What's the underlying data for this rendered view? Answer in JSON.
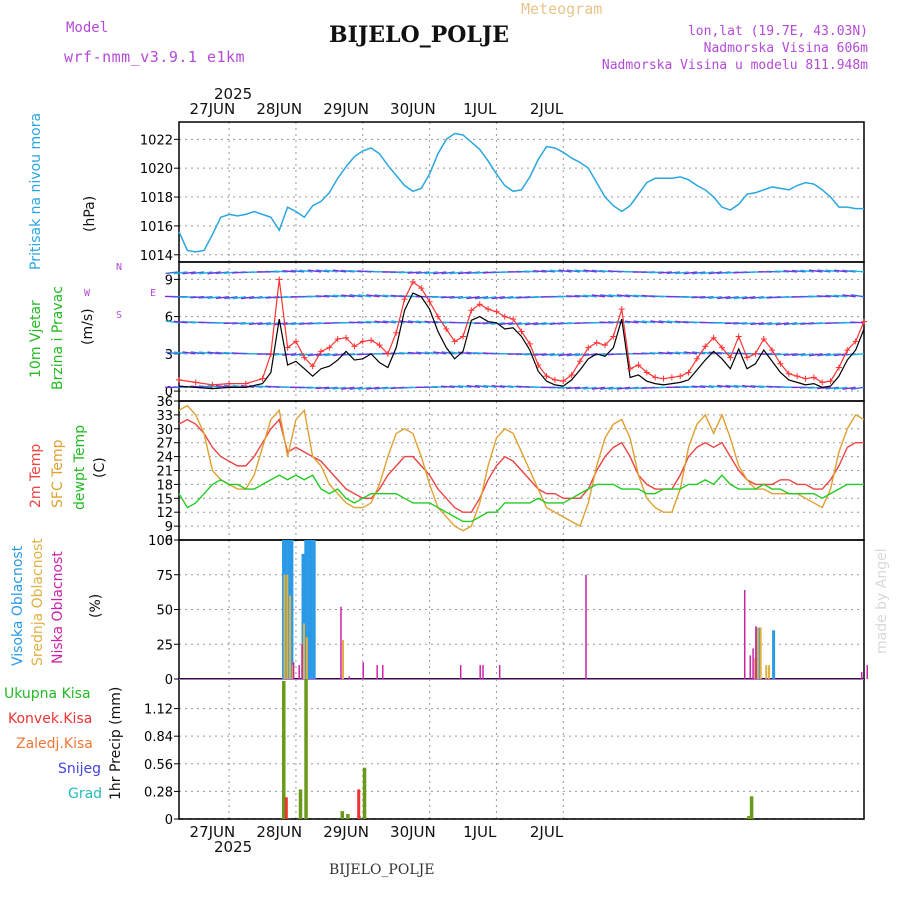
{
  "header": {
    "model_label": "Model",
    "model_name": "wrf-nmm_v3.9.1  e1km",
    "title": "BIJELO_POLJE",
    "product": "Meteogram",
    "coords": "lon,lat (19.7E, 43.03N)",
    "altitude": "Nadmorska Visina 606m",
    "model_altitude": "Nadmorska Visina u modelu 811.948m"
  },
  "footer": {
    "station": "BIJELO_POLJE",
    "credit": "made by Angel"
  },
  "time_axis": {
    "year": "2025",
    "days": [
      "27JUN",
      "28JUN",
      "29JUN",
      "30JUN",
      "1JUL",
      "2JUL"
    ]
  },
  "panels": {
    "pressure": {
      "label": "Pritisak na nivou mora",
      "unit": "(hPa)"
    },
    "wind": {
      "label1": "10m Vjetar",
      "label2": "Brzina i Pravac",
      "unit": "(m/s)",
      "compass_n": "N",
      "compass_s": "S",
      "compass_w": "W",
      "compass_e": "E"
    },
    "temp": {
      "label_2m": "2m Temp",
      "label_sfc": "SFC Temp",
      "label_dew": "dewpt Temp",
      "unit": "(C)"
    },
    "cloud": {
      "label_high": "Visoka Oblacnost",
      "label_mid": "Srednja Oblacnost",
      "label_low": "Niska Oblacnost",
      "unit": "(%)"
    },
    "precip": {
      "legend": [
        "Ukupna Kisa",
        "Konvek.Kisa",
        "Zaledj.Kisa",
        "Snijeg",
        "Grad"
      ],
      "ylabel": "1hr Precip (mm)"
    }
  },
  "colors": {
    "pressure": "#2aa6e0",
    "wind_speed": "#000000",
    "gust": "#ff3333",
    "temp2m": "#ee4444",
    "sfc": "#e0a030",
    "dew": "#22cc22",
    "high_cloud": "#2a9ae8",
    "mid_cloud": "#e0b040",
    "low_cloud": "#cc22aa",
    "total_precip": "#6a9a1a",
    "conv_precip": "#ee3333"
  },
  "chart_data": [
    {
      "type": "line",
      "title": "",
      "ylabel": "(hPa)",
      "ylim": [
        1013.5,
        1023.2
      ],
      "yticks": [
        1014,
        1016,
        1018,
        1020,
        1022
      ],
      "x": [
        0,
        3,
        6,
        9,
        12,
        15,
        18,
        21,
        24,
        27,
        30,
        33,
        36,
        39,
        42,
        45,
        48,
        51,
        54,
        57,
        60,
        63,
        66,
        69,
        72,
        75,
        78,
        81,
        84,
        87,
        90,
        93,
        96,
        99,
        102,
        105,
        108,
        111,
        114,
        117,
        120,
        123,
        126,
        129,
        132,
        135,
        138,
        141,
        144,
        147,
        150,
        153,
        156,
        159,
        162,
        165,
        168,
        171,
        174,
        177,
        180,
        183,
        186,
        189,
        192,
        195,
        198,
        201,
        204,
        207,
        210,
        213,
        216,
        219,
        222,
        225,
        228,
        231,
        234,
        237,
        240,
        243,
        246
      ],
      "series": [
        {
          "values": [
            1015.6,
            1014.3,
            1014.2,
            1014.3,
            1015.4,
            1016.6,
            1016.8,
            1016.7,
            1016.8,
            1017.0,
            1016.8,
            1016.6,
            1015.7,
            1017.3,
            1017.0,
            1016.6,
            1017.4,
            1017.7,
            1018.3,
            1019.3,
            1020.1,
            1020.8,
            1021.2,
            1021.4,
            1021.0,
            1020.2,
            1019.5,
            1018.8,
            1018.4,
            1018.6,
            1019.6,
            1021.0,
            1022.0,
            1022.4,
            1022.3,
            1021.8,
            1021.3,
            1020.5,
            1019.6,
            1018.8,
            1018.4,
            1018.5,
            1019.4,
            1020.6,
            1021.5,
            1021.4,
            1021.1,
            1020.7,
            1020.4,
            1020.0,
            1019.0,
            1018.0,
            1017.4,
            1017.0,
            1017.4,
            1018.2,
            1019.0,
            1019.3,
            1019.3,
            1019.3,
            1019.4,
            1019.2,
            1018.8,
            1018.5,
            1018.0,
            1017.3,
            1017.1,
            1017.5,
            1018.2,
            1018.3,
            1018.5,
            1018.7,
            1018.6,
            1018.5,
            1018.8,
            1019.0,
            1018.9,
            1018.5,
            1018.0,
            1017.3,
            1017.3,
            1017.2,
            1017.2
          ]
        }
      ]
    },
    {
      "type": "line",
      "title": "",
      "ylabel": "(m/s)",
      "ylim": [
        -0.8,
        10.4
      ],
      "yticks": [
        0,
        3,
        6,
        9
      ],
      "x": [
        0,
        6,
        12,
        18,
        24,
        30,
        33,
        36,
        39,
        42,
        45,
        48,
        51,
        54,
        57,
        60,
        63,
        66,
        69,
        72,
        75,
        78,
        81,
        84,
        87,
        90,
        93,
        96,
        99,
        102,
        105,
        108,
        111,
        114,
        117,
        120,
        123,
        126,
        129,
        132,
        135,
        138,
        141,
        144,
        147,
        150,
        153,
        156,
        159,
        162,
        165,
        168,
        171,
        174,
        177,
        180,
        183,
        186,
        189,
        192,
        195,
        198,
        201,
        204,
        207,
        210,
        213,
        216,
        219,
        222,
        225,
        228,
        231,
        234,
        237,
        240,
        243,
        246
      ],
      "series": [
        {
          "name": "speed",
          "values": [
            0.4,
            0.3,
            0.2,
            0.3,
            0.3,
            0.6,
            1.5,
            5.8,
            2.1,
            2.4,
            1.8,
            1.2,
            1.8,
            2.0,
            2.5,
            3.2,
            2.5,
            2.6,
            3.0,
            2.3,
            1.9,
            3.5,
            6.5,
            7.9,
            7.6,
            6.6,
            4.8,
            3.5,
            2.6,
            3.2,
            5.7,
            6.0,
            5.6,
            5.5,
            5.0,
            5.1,
            4.4,
            3.3,
            1.6,
            0.8,
            0.5,
            0.4,
            0.9,
            1.7,
            2.6,
            3.0,
            2.8,
            3.5,
            5.8,
            1.1,
            1.3,
            0.8,
            0.6,
            0.5,
            0.6,
            0.7,
            0.9,
            1.7,
            2.5,
            3.2,
            2.6,
            1.8,
            3.4,
            1.8,
            2.2,
            3.3,
            2.4,
            1.5,
            0.9,
            0.7,
            0.5,
            0.6,
            0.3,
            0.4,
            1.2,
            2.5,
            3.3,
            5.0
          ]
        },
        {
          "name": "gust",
          "values": [
            0.9,
            0.7,
            0.5,
            0.6,
            0.6,
            1.0,
            3.0,
            9.0,
            3.5,
            4.0,
            2.7,
            2.0,
            3.2,
            3.5,
            4.2,
            4.3,
            3.6,
            4.0,
            4.1,
            3.7,
            3.0,
            4.7,
            7.4,
            8.8,
            8.3,
            7.2,
            6.0,
            5.0,
            4.0,
            4.4,
            6.5,
            7.0,
            6.6,
            6.4,
            6.0,
            5.8,
            4.8,
            3.8,
            2.1,
            1.2,
            0.9,
            0.8,
            1.3,
            2.4,
            3.5,
            3.9,
            3.7,
            4.4,
            6.6,
            1.8,
            2.1,
            1.5,
            1.1,
            1.0,
            1.1,
            1.2,
            1.5,
            2.6,
            3.6,
            4.3,
            3.5,
            2.7,
            4.4,
            2.7,
            3.0,
            4.2,
            3.3,
            2.2,
            1.4,
            1.2,
            1.0,
            1.1,
            0.7,
            0.8,
            1.9,
            3.3,
            4.0,
            5.6
          ]
        }
      ]
    },
    {
      "type": "line",
      "title": "",
      "ylabel": "(C)",
      "ylim": [
        6,
        36
      ],
      "yticks": [
        6,
        9,
        12,
        15,
        18,
        21,
        24,
        27,
        30,
        33,
        36
      ],
      "x": [
        0,
        3,
        6,
        9,
        12,
        15,
        18,
        21,
        24,
        27,
        30,
        33,
        36,
        39,
        42,
        45,
        48,
        51,
        54,
        57,
        60,
        63,
        66,
        69,
        72,
        75,
        78,
        81,
        84,
        87,
        90,
        93,
        96,
        99,
        102,
        105,
        108,
        111,
        114,
        117,
        120,
        123,
        126,
        129,
        132,
        135,
        138,
        141,
        144,
        147,
        150,
        153,
        156,
        159,
        162,
        165,
        168,
        171,
        174,
        177,
        180,
        183,
        186,
        189,
        192,
        195,
        198,
        201,
        204,
        207,
        210,
        213,
        216,
        219,
        222,
        225,
        228,
        231,
        234,
        237,
        240,
        243,
        246
      ],
      "series": [
        {
          "name": "2m",
          "values": [
            31,
            32,
            31,
            29,
            26,
            24,
            23,
            22,
            22,
            24,
            27,
            30,
            32,
            25,
            26,
            25,
            24,
            23,
            21,
            19,
            17,
            16,
            15,
            15,
            17,
            20,
            22,
            24,
            24,
            22,
            20,
            17,
            15,
            13,
            12,
            12,
            15,
            19,
            22,
            24,
            23,
            21,
            19,
            17,
            16,
            16,
            15,
            15,
            15,
            17,
            21,
            24,
            26,
            27,
            24,
            20,
            18,
            17,
            17,
            17,
            20,
            24,
            26,
            27,
            26,
            27,
            24,
            21,
            19,
            18,
            18,
            18,
            19,
            19,
            18,
            18,
            17,
            17,
            19,
            22,
            26,
            27,
            27
          ]
        },
        {
          "name": "sfc",
          "values": [
            34,
            35,
            33,
            29,
            21,
            19,
            18,
            17,
            17,
            20,
            26,
            32,
            34,
            24,
            32,
            34,
            24,
            22,
            18,
            16,
            14,
            13,
            13,
            14,
            18,
            24,
            29,
            30,
            29,
            24,
            18,
            13,
            11,
            9,
            8,
            9,
            14,
            22,
            28,
            30,
            29,
            25,
            21,
            17,
            13,
            12,
            11,
            10,
            9,
            14,
            22,
            28,
            31,
            32,
            28,
            20,
            15,
            13,
            12,
            12,
            17,
            26,
            31,
            33,
            29,
            33,
            28,
            22,
            19,
            17,
            17,
            16,
            16,
            16,
            16,
            15,
            14,
            13,
            17,
            25,
            30,
            33,
            32
          ]
        },
        {
          "name": "dew",
          "values": [
            16,
            13,
            14,
            16,
            18,
            19,
            18,
            18,
            17,
            17,
            18,
            19,
            20,
            19,
            20,
            19,
            20,
            17,
            16,
            17,
            15,
            14,
            15,
            16,
            16,
            16,
            16,
            15,
            14,
            14,
            14,
            13,
            12,
            11,
            10,
            10,
            11,
            12,
            12,
            14,
            14,
            14,
            14,
            15,
            14,
            14,
            14,
            15,
            16,
            17,
            18,
            18,
            18,
            17,
            17,
            17,
            16,
            16,
            17,
            17,
            17,
            18,
            18,
            19,
            18,
            20,
            18,
            17,
            17,
            17,
            18,
            17,
            17,
            16,
            16,
            16,
            16,
            15,
            16,
            17,
            18,
            18,
            18
          ]
        }
      ]
    },
    {
      "type": "bar",
      "title": "",
      "ylabel": "(%)",
      "ylim": [
        0,
        100
      ],
      "yticks": [
        0,
        25,
        50,
        75,
        100
      ],
      "series": [
        {
          "name": "high",
          "x": [
            37,
            38,
            39,
            40,
            44,
            45,
            46,
            47,
            48,
            207,
            208,
            213
          ],
          "values": [
            100,
            100,
            100,
            100,
            90,
            100,
            100,
            100,
            100,
            37,
            37,
            35
          ]
        },
        {
          "name": "mid",
          "x": [
            37,
            38,
            39,
            40,
            44,
            45,
            58,
            206,
            207,
            208,
            210,
            211
          ],
          "values": [
            75,
            75,
            60,
            10,
            40,
            30,
            28,
            15,
            37,
            37,
            10,
            10
          ]
        },
        {
          "name": "low",
          "x": [
            40,
            42,
            43,
            57,
            60,
            65,
            70,
            72,
            100,
            107,
            108,
            114,
            145,
            202,
            204,
            205,
            206,
            244,
            246
          ],
          "values": [
            12,
            10,
            25,
            52,
            2,
            12,
            10,
            10,
            10,
            10,
            10,
            10,
            75,
            64,
            17,
            22,
            38,
            5,
            10
          ]
        }
      ]
    },
    {
      "type": "bar",
      "title": "",
      "ylabel": "1hr Precip (mm)",
      "ylim": [
        0,
        1.42
      ],
      "yticks": [
        0,
        0.28,
        0.56,
        0.84,
        1.12
      ],
      "series": [
        {
          "name": "total",
          "x": [
            37,
            43,
            45,
            58,
            60,
            64,
            66,
            204,
            205
          ],
          "values": [
            1.4,
            0.3,
            1.42,
            0.08,
            0.05,
            0.03,
            0.52,
            0.03,
            0.23
          ]
        },
        {
          "name": "conv",
          "x": [
            38,
            64
          ],
          "values": [
            0.22,
            0.3
          ]
        }
      ]
    }
  ]
}
